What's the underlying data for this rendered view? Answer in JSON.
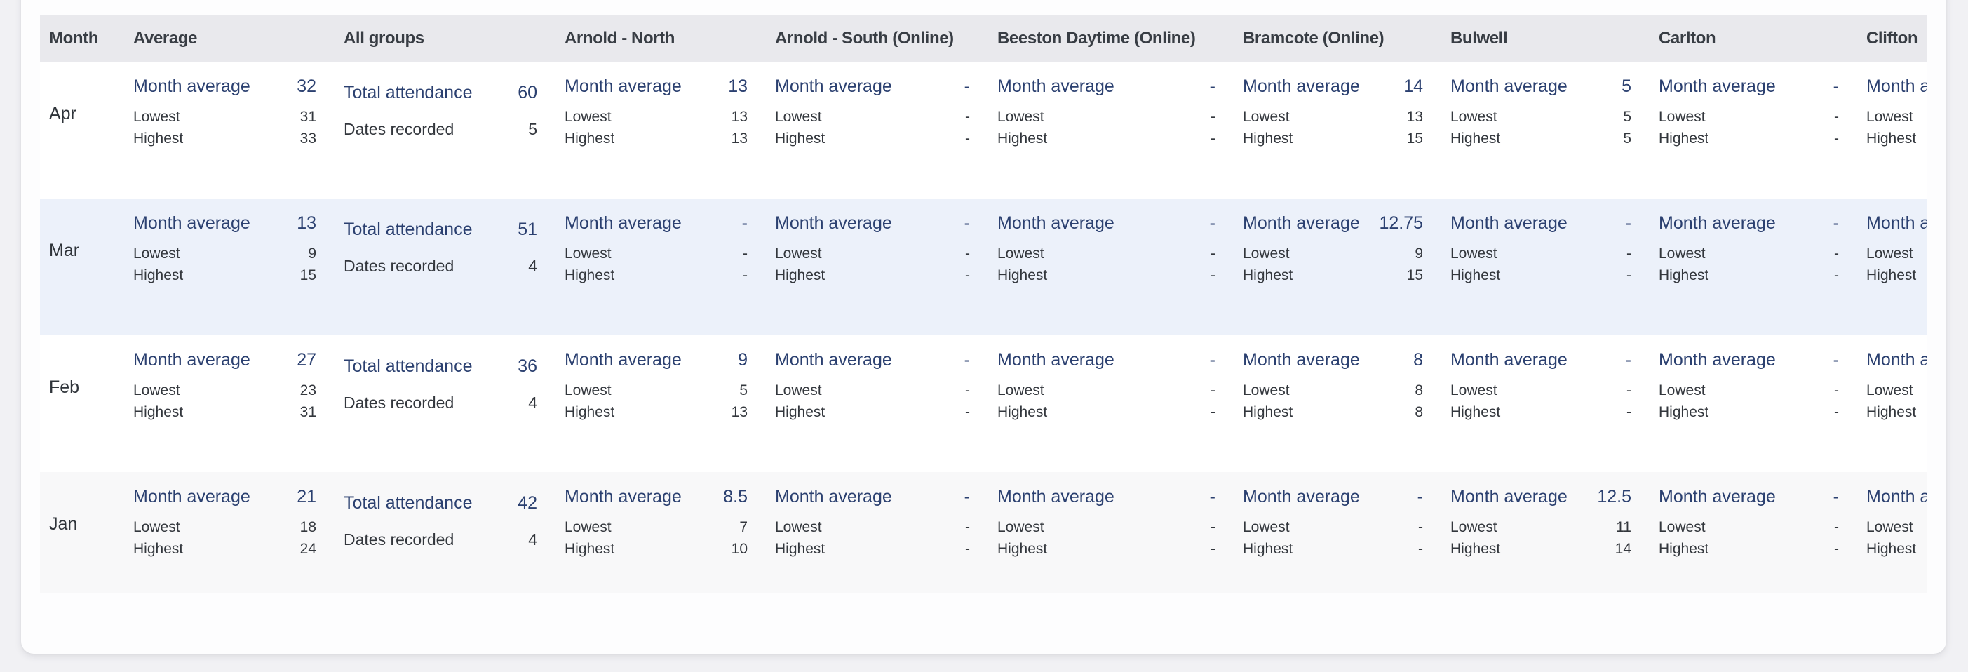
{
  "labels": {
    "month_average": "Month average",
    "lowest": "Lowest",
    "highest": "Highest",
    "total_attendance": "Total attendance",
    "dates_recorded": "Dates recorded"
  },
  "header": {
    "columns": [
      "Month",
      "Average",
      "All groups",
      "Arnold - North",
      "Arnold - South (Online)",
      "Beeston Daytime (Online)",
      "Bramcote (Online)",
      "Bulwell",
      "Carlton",
      "Clifton"
    ]
  },
  "rows": [
    {
      "month": "Apr",
      "average": {
        "avg": "32",
        "low": "31",
        "high": "33"
      },
      "all_groups": {
        "total": "60",
        "dates": "5"
      },
      "groups": [
        {
          "avg": "13",
          "low": "13",
          "high": "13"
        },
        {
          "avg": "-",
          "low": "-",
          "high": "-"
        },
        {
          "avg": "-",
          "low": "-",
          "high": "-"
        },
        {
          "avg": "14",
          "low": "13",
          "high": "15"
        },
        {
          "avg": "5",
          "low": "5",
          "high": "5"
        },
        {
          "avg": "-",
          "low": "-",
          "high": "-"
        },
        {
          "avg": "-",
          "low": "-",
          "high": "-"
        }
      ]
    },
    {
      "month": "Mar",
      "average": {
        "avg": "13",
        "low": "9",
        "high": "15"
      },
      "all_groups": {
        "total": "51",
        "dates": "4"
      },
      "groups": [
        {
          "avg": "-",
          "low": "-",
          "high": "-"
        },
        {
          "avg": "-",
          "low": "-",
          "high": "-"
        },
        {
          "avg": "-",
          "low": "-",
          "high": "-"
        },
        {
          "avg": "12.75",
          "low": "9",
          "high": "15"
        },
        {
          "avg": "-",
          "low": "-",
          "high": "-"
        },
        {
          "avg": "-",
          "low": "-",
          "high": "-"
        },
        {
          "avg": "-",
          "low": "-",
          "high": "-"
        }
      ]
    },
    {
      "month": "Feb",
      "average": {
        "avg": "27",
        "low": "23",
        "high": "31"
      },
      "all_groups": {
        "total": "36",
        "dates": "4"
      },
      "groups": [
        {
          "avg": "9",
          "low": "5",
          "high": "13"
        },
        {
          "avg": "-",
          "low": "-",
          "high": "-"
        },
        {
          "avg": "-",
          "low": "-",
          "high": "-"
        },
        {
          "avg": "8",
          "low": "8",
          "high": "8"
        },
        {
          "avg": "-",
          "low": "-",
          "high": "-"
        },
        {
          "avg": "-",
          "low": "-",
          "high": "-"
        },
        {
          "avg": "-",
          "low": "-",
          "high": "-"
        }
      ]
    },
    {
      "month": "Jan",
      "average": {
        "avg": "21",
        "low": "18",
        "high": "24"
      },
      "all_groups": {
        "total": "42",
        "dates": "4"
      },
      "groups": [
        {
          "avg": "8.5",
          "low": "7",
          "high": "10"
        },
        {
          "avg": "-",
          "low": "-",
          "high": "-"
        },
        {
          "avg": "-",
          "low": "-",
          "high": "-"
        },
        {
          "avg": "-",
          "low": "-",
          "high": "-"
        },
        {
          "avg": "12.5",
          "low": "11",
          "high": "14"
        },
        {
          "avg": "-",
          "low": "-",
          "high": "-"
        },
        {
          "avg": "-",
          "low": "-",
          "high": "-"
        }
      ]
    }
  ],
  "colors": {
    "accent_navy": "#2b4070",
    "text_dark": "#33373d",
    "header_bg": "#e9e9ed",
    "page_bg": "#f1f1f4",
    "card_bg": "#fdfdfe",
    "row_backgrounds": [
      "#ffffff",
      "#ecf1fa",
      "#ffffff",
      "#f8f8f9"
    ]
  }
}
